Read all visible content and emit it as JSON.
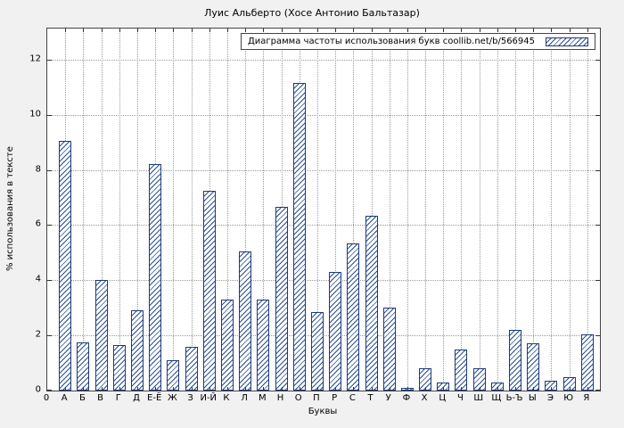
{
  "chart_data": {
    "type": "bar",
    "title": "Луис Альберто (Хосе Антонио Бальтазар)",
    "legend_label": "Диаграмма частоты использования букв coollib.net/b/566945",
    "xlabel": "Буквы",
    "ylabel": "% использования в тексте",
    "x_origin_label": "0",
    "categories": [
      "А",
      "Б",
      "В",
      "Г",
      "Д",
      "Е-Ё",
      "Ж",
      "З",
      "И-Й",
      "К",
      "Л",
      "М",
      "Н",
      "О",
      "П",
      "Р",
      "С",
      "Т",
      "У",
      "Ф",
      "Х",
      "Ц",
      "Ч",
      "Ш",
      "Щ",
      "Ь-Ъ",
      "Ы",
      "Э",
      "Ю",
      "Я"
    ],
    "values": [
      9.05,
      1.75,
      4.0,
      1.65,
      2.9,
      8.2,
      1.1,
      1.6,
      7.25,
      3.3,
      5.05,
      3.3,
      6.65,
      11.15,
      2.85,
      4.3,
      5.35,
      6.35,
      3.0,
      0.1,
      0.8,
      0.3,
      1.5,
      0.8,
      0.3,
      2.2,
      1.7,
      0.35,
      0.5,
      2.05
    ],
    "yticks": [
      0,
      2,
      4,
      6,
      8,
      10,
      12
    ],
    "ylim": [
      0,
      13.13
    ],
    "grid": true,
    "legend_position": "top-right",
    "colors": {
      "bar_hatch": "#2b4d8e",
      "bar_border": "#1c3a7a",
      "grid": "#9a9a9a",
      "axis": "#333333",
      "plot_background": "#ffffff",
      "page_background": "#f1f1f1"
    }
  }
}
